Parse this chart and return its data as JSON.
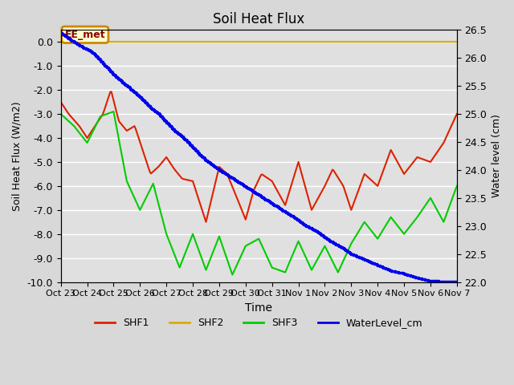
{
  "title": "Soil Heat Flux",
  "xlabel": "Time",
  "ylabel_left": "Soil Heat Flux (W/m2)",
  "ylabel_right": "Water level (cm)",
  "ylim_left": [
    -10.0,
    0.5
  ],
  "ylim_right": [
    22.0,
    26.5
  ],
  "yticks_left": [
    0.0,
    -1.0,
    -2.0,
    -3.0,
    -4.0,
    -5.0,
    -6.0,
    -7.0,
    -8.0,
    -9.0,
    -10.0
  ],
  "yticks_right": [
    22.0,
    22.5,
    23.0,
    23.5,
    24.0,
    24.5,
    25.0,
    25.5,
    26.0,
    26.5
  ],
  "background_color": "#e8e8e8",
  "plot_bg_color": "#e0e0e0",
  "grid_color": "#ffffff",
  "annotation_text": "EE_met",
  "annotation_color": "#cc8800",
  "annotation_bg": "#ffffcc",
  "colors": {
    "SHF1": "#dd2200",
    "SHF2": "#ddaa00",
    "SHF3": "#00cc00",
    "WaterLevel": "#0000ee"
  },
  "xtick_labels": [
    "Oct 23",
    "Oct 24",
    "Oct 25",
    "Oct 26",
    "Oct 27",
    "Oct 28",
    "Oct 29",
    "Oct 30",
    "Oct 31",
    "Nov 1",
    "Nov 2",
    "Nov 3",
    "Nov 4",
    "Nov 5",
    "Nov 6",
    "Nov 7"
  ],
  "n_days": 15
}
